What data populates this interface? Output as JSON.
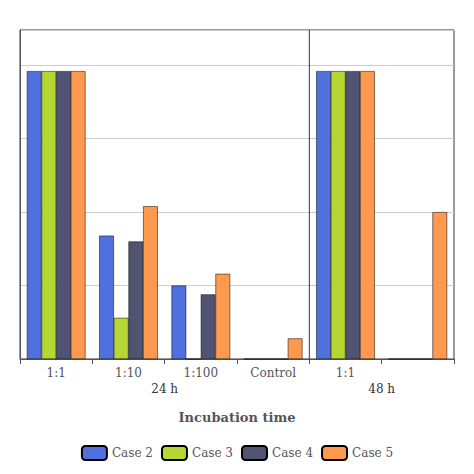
{
  "chart_data": {
    "type": "bar",
    "xlabel": "Incubation time",
    "categories": [
      "1:1",
      "1:10",
      "1:100",
      "Control",
      "1:1",
      null
    ],
    "series": [
      {
        "name": "Case 2",
        "values": [
          98,
          42,
          25,
          0,
          98,
          0
        ]
      },
      {
        "name": "Case 3",
        "values": [
          98,
          14,
          0,
          0,
          98,
          0
        ]
      },
      {
        "name": "Case 4",
        "values": [
          98,
          40,
          22,
          0,
          98,
          0
        ]
      },
      {
        "name": "Case 5",
        "values": [
          98,
          52,
          29,
          7,
          98,
          50
        ]
      }
    ],
    "annotations": [
      "24 h",
      "48 h"
    ],
    "ylim": [
      0,
      112
    ],
    "yticks": [
      0,
      25,
      50,
      75,
      100
    ],
    "grid": true,
    "legend": "bottom",
    "tick_labels": "x"
  }
}
